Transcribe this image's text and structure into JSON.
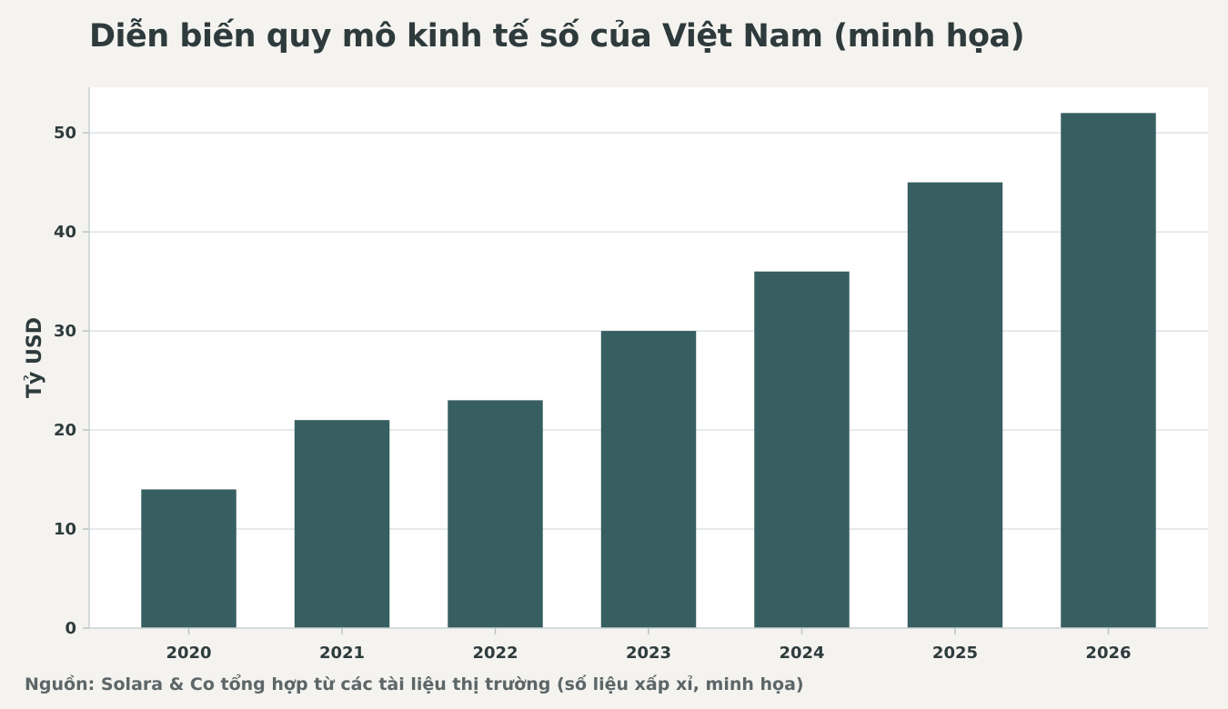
{
  "chart_data": {
    "type": "bar",
    "title": "Diễn biến quy mô kinh tế số của Việt Nam (minh họa)",
    "xlabel": "",
    "ylabel": "Tỷ USD",
    "categories": [
      "2020",
      "2021",
      "2022",
      "2023",
      "2024",
      "2025",
      "2026"
    ],
    "values": [
      14,
      21,
      23,
      30,
      36,
      45,
      52
    ],
    "ylim": [
      0,
      54.6
    ],
    "yticks": [
      "0",
      "10",
      "20",
      "30",
      "40",
      "50"
    ],
    "grid": "horizontal",
    "legend": "none",
    "colors": {
      "bar": "#375e60",
      "plot_background": "#ffffff",
      "page_background": "#f4f3ef",
      "grid": "#dde3e6"
    }
  },
  "source": "Nguồn: Solara & Co tổng hợp từ các tài liệu thị trường (số liệu xấp xỉ, minh họa)"
}
